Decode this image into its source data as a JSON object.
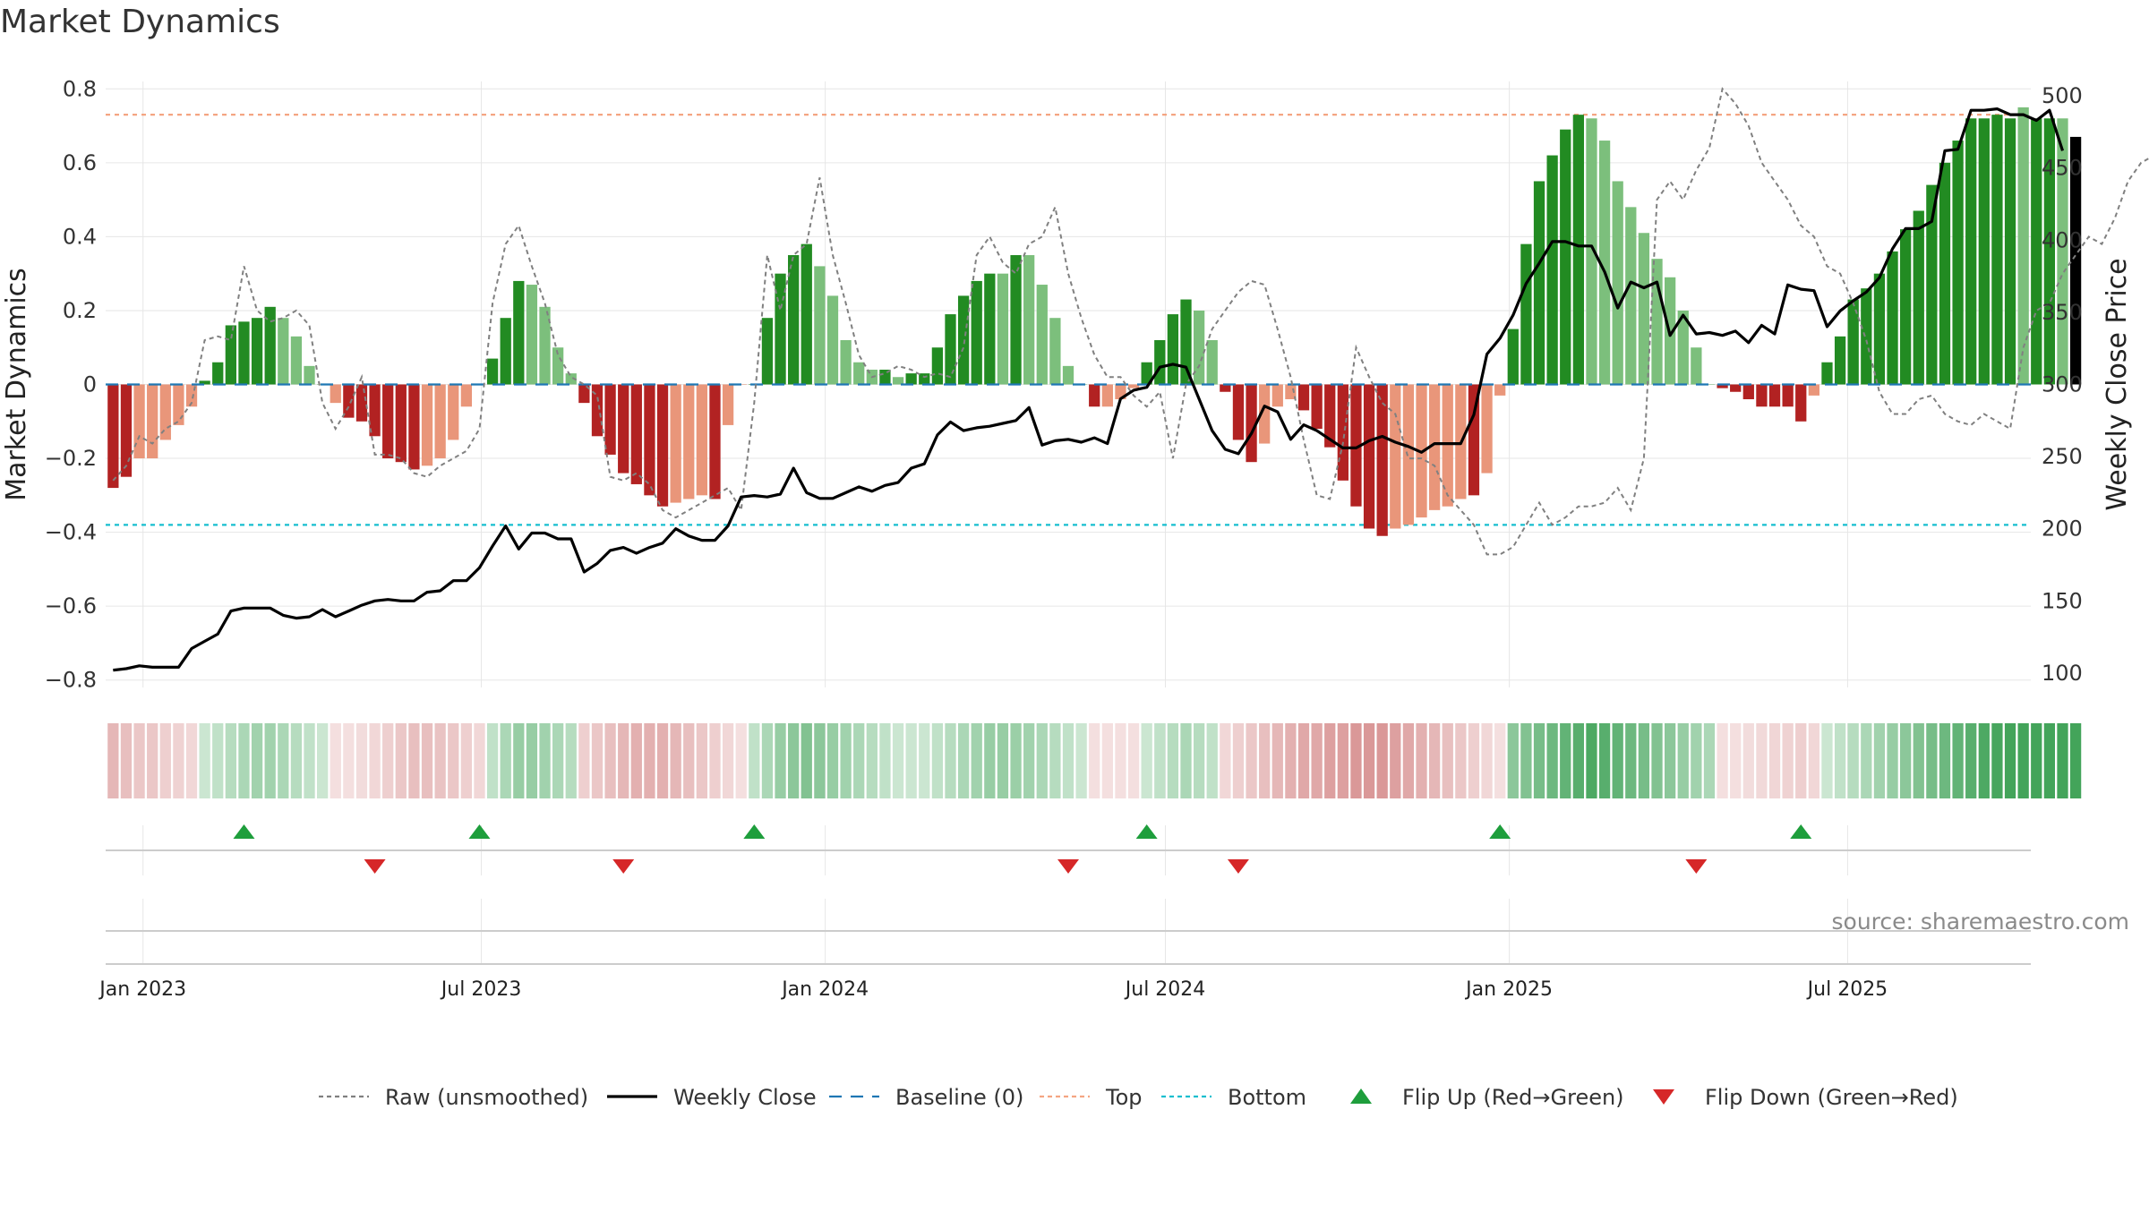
{
  "title": "Market Dynamics",
  "source": "source: sharemaestro.com",
  "colors": {
    "green_strong": "#228B22",
    "green_light": "#7CBF7C",
    "red_strong": "#B22222",
    "red_light": "#E9967A",
    "top_line": "#F4A582",
    "bottom_line": "#17BECF",
    "baseline": "#1F77B4",
    "raw": "#808080",
    "close": "#000000",
    "flip_up": "#1E9E3C",
    "flip_down": "#D62728",
    "grid": "#E6E6E6"
  },
  "legend": [
    {
      "key": "raw",
      "label": "Raw (unsmoothed)",
      "symbol": "dotted-line"
    },
    {
      "key": "close",
      "label": "Weekly Close",
      "symbol": "solid-line"
    },
    {
      "key": "baseline",
      "label": "Baseline (0)",
      "symbol": "dashed-line"
    },
    {
      "key": "top_line",
      "label": "Top",
      "symbol": "dotted-line"
    },
    {
      "key": "bottom_line",
      "label": "Bottom",
      "symbol": "dotted-line"
    },
    {
      "key": "flip_up",
      "label": "Flip Up (Red→Green)",
      "symbol": "triangle-up"
    },
    {
      "key": "flip_down",
      "label": "Flip Down (Green→Red)",
      "symbol": "triangle-down"
    }
  ],
  "chart_data": {
    "type": "bar",
    "ylabel": "Market Dynamics",
    "y2label": "Weekly Close Price",
    "ylim": [
      -0.82,
      0.82
    ],
    "y2lim": [
      90,
      510
    ],
    "yticks": [
      -0.8,
      -0.6,
      -0.4,
      -0.2,
      0,
      0.2,
      0.4,
      0.6,
      0.8
    ],
    "y2ticks": [
      100,
      150,
      200,
      250,
      300,
      350,
      400,
      450,
      500
    ],
    "xlim": [
      "2022-12-12",
      "2025-10-07"
    ],
    "xticks": [
      {
        "date": "2023-01-01",
        "label": "Jan 2023"
      },
      {
        "date": "2023-07-01",
        "label": "Jul 2023"
      },
      {
        "date": "2024-01-01",
        "label": "Jan 2024"
      },
      {
        "date": "2024-07-01",
        "label": "Jul 2024"
      },
      {
        "date": "2025-01-01",
        "label": "Jan 2025"
      },
      {
        "date": "2025-07-01",
        "label": "Jul 2025"
      }
    ],
    "start_date": "2022-12-16",
    "step_days": 7,
    "top": 0.73,
    "bottom": -0.38,
    "baseline": 0,
    "grid": true,
    "legend_position": "bottom",
    "series": [
      {
        "name": "Raw (unsmoothed)",
        "type": "line",
        "values": [
          -0.26,
          -0.22,
          -0.14,
          -0.16,
          -0.12,
          -0.1,
          -0.05,
          0.12,
          0.13,
          0.12,
          0.32,
          0.2,
          0.17,
          0.18,
          0.2,
          0.16,
          -0.05,
          -0.12,
          -0.06,
          0.02,
          -0.19,
          -0.19,
          -0.2,
          -0.24,
          -0.25,
          -0.22,
          -0.2,
          -0.18,
          -0.12,
          0.22,
          0.38,
          0.43,
          0.32,
          0.22,
          0.08,
          0.02,
          0.0,
          -0.03,
          -0.25,
          -0.26,
          -0.24,
          -0.27,
          -0.34,
          -0.36,
          -0.34,
          -0.32,
          -0.3,
          -0.28,
          -0.34,
          -0.05,
          0.35,
          0.2,
          0.35,
          0.38,
          0.56,
          0.35,
          0.22,
          0.08,
          0.02,
          0.03,
          0.05,
          0.04,
          0.02,
          0.03,
          0.02,
          0.1,
          0.35,
          0.4,
          0.33,
          0.3,
          0.38,
          0.4,
          0.48,
          0.3,
          0.18,
          0.08,
          0.02,
          0.02,
          -0.03,
          -0.06,
          -0.02,
          -0.2,
          0.0,
          0.05,
          0.15,
          0.2,
          0.25,
          0.28,
          0.27,
          0.15,
          0.02,
          -0.15,
          -0.3,
          -0.31,
          -0.16,
          0.1,
          0.02,
          -0.05,
          -0.08,
          -0.2,
          -0.2,
          -0.22,
          -0.3,
          -0.34,
          -0.38,
          -0.46,
          -0.46,
          -0.44,
          -0.38,
          -0.32,
          -0.38,
          -0.36,
          -0.33,
          -0.33,
          -0.32,
          -0.28,
          -0.34,
          -0.2,
          0.5,
          0.55,
          0.5,
          0.58,
          0.64,
          0.8,
          0.76,
          0.7,
          0.6,
          0.55,
          0.5,
          0.43,
          0.4,
          0.32,
          0.3,
          0.22,
          0.12,
          -0.02,
          -0.08,
          -0.08,
          -0.04,
          -0.03,
          -0.08,
          -0.1,
          -0.11,
          -0.08,
          -0.1,
          -0.12,
          0.1,
          0.2,
          0.22,
          0.3,
          0.35,
          0.4,
          0.38,
          0.45,
          0.55,
          0.6,
          0.62,
          0.65,
          0.7,
          0.82,
          0.72,
          0.75,
          0.73,
          0.78,
          0.76,
          0.72,
          0.65
        ],
        "color": "#808080"
      },
      {
        "name": "Weekly Close",
        "type": "line",
        "axis": "y2",
        "values": [
          102,
          103,
          105,
          104,
          104,
          104,
          117,
          122,
          127,
          143,
          145,
          145,
          145,
          140,
          138,
          139,
          144,
          139,
          143,
          147,
          150,
          151,
          150,
          150,
          156,
          157,
          164,
          164,
          173,
          188,
          202,
          186,
          197,
          197,
          193,
          193,
          170,
          176,
          185,
          187,
          183,
          187,
          190,
          200,
          195,
          192,
          192,
          202,
          222,
          223,
          222,
          224,
          242,
          225,
          221,
          221,
          225,
          229,
          226,
          230,
          232,
          242,
          245,
          265,
          274,
          268,
          270,
          271,
          273,
          275,
          284,
          258,
          261,
          262,
          260,
          263,
          259,
          290,
          296,
          298,
          312,
          314,
          312,
          290,
          268,
          255,
          252,
          266,
          285,
          281,
          262,
          272,
          268,
          262,
          256,
          256,
          261,
          264,
          260,
          257,
          253,
          259,
          259,
          259,
          279,
          321,
          332,
          348,
          370,
          384,
          399,
          399,
          396,
          396,
          378,
          353,
          371,
          367,
          371,
          334,
          348,
          335,
          336,
          334,
          337,
          329,
          341,
          335,
          369,
          366,
          365,
          340,
          351,
          358,
          364,
          374,
          394,
          408,
          408,
          413,
          462,
          463,
          490,
          490,
          491,
          487,
          487,
          483,
          490,
          462
        ],
        "color": "#000000"
      }
    ],
    "momentum": {
      "name": "Market Dynamics",
      "type": "bar",
      "values": [
        -0.28,
        -0.25,
        -0.2,
        -0.2,
        -0.15,
        -0.11,
        -0.06,
        0.01,
        0.06,
        0.16,
        0.17,
        0.18,
        0.21,
        0.18,
        0.13,
        0.05,
        0.0,
        -0.05,
        -0.09,
        -0.1,
        -0.14,
        -0.2,
        -0.21,
        -0.23,
        -0.22,
        -0.2,
        -0.15,
        -0.06,
        0.0,
        0.07,
        0.18,
        0.28,
        0.27,
        0.21,
        0.1,
        0.03,
        -0.05,
        -0.14,
        -0.19,
        -0.24,
        -0.27,
        -0.3,
        -0.33,
        -0.32,
        -0.31,
        -0.3,
        -0.31,
        -0.11,
        0.0,
        0.0,
        0.18,
        0.3,
        0.35,
        0.38,
        0.32,
        0.24,
        0.12,
        0.06,
        0.04,
        0.04,
        0.02,
        0.03,
        0.03,
        0.1,
        0.19,
        0.24,
        0.28,
        0.3,
        0.3,
        0.35,
        0.35,
        0.27,
        0.18,
        0.05,
        0.0,
        -0.06,
        -0.06,
        -0.04,
        -0.01,
        0.06,
        0.12,
        0.19,
        0.23,
        0.2,
        0.12,
        -0.02,
        -0.15,
        -0.21,
        -0.16,
        -0.06,
        -0.04,
        -0.07,
        -0.12,
        -0.17,
        -0.26,
        -0.33,
        -0.39,
        -0.41,
        -0.39,
        -0.38,
        -0.36,
        -0.34,
        -0.33,
        -0.31,
        -0.3,
        -0.24,
        -0.03,
        0.15,
        0.38,
        0.55,
        0.62,
        0.69,
        0.73,
        0.72,
        0.66,
        0.55,
        0.48,
        0.41,
        0.34,
        0.29,
        0.2,
        0.1,
        0.0,
        -0.01,
        -0.02,
        -0.04,
        -0.06,
        -0.06,
        -0.06,
        -0.1,
        -0.03,
        0.06,
        0.13,
        0.23,
        0.26,
        0.3,
        0.36,
        0.42,
        0.47,
        0.54,
        0.6,
        0.66,
        0.72,
        0.72,
        0.73,
        0.72,
        0.75,
        0.72,
        0.72,
        0.72,
        0.67
      ],
      "states": [
        2,
        2,
        3,
        3,
        3,
        3,
        3,
        0,
        0,
        0,
        0,
        0,
        0,
        1,
        1,
        1,
        1,
        3,
        2,
        2,
        2,
        2,
        2,
        2,
        3,
        3,
        3,
        3,
        3,
        0,
        0,
        0,
        1,
        1,
        1,
        1,
        2,
        2,
        2,
        2,
        2,
        2,
        2,
        3,
        3,
        3,
        2,
        3,
        3,
        0,
        0,
        0,
        0,
        0,
        1,
        1,
        1,
        1,
        1,
        0,
        1,
        0,
        0,
        0,
        0,
        0,
        0,
        0,
        1,
        0,
        1,
        1,
        1,
        1,
        1,
        2,
        3,
        3,
        3,
        0,
        0,
        0,
        0,
        1,
        1,
        2,
        2,
        2,
        3,
        3,
        3,
        2,
        2,
        2,
        2,
        2,
        2,
        2,
        3,
        3,
        3,
        3,
        3,
        3,
        2,
        3,
        3,
        0,
        0,
        0,
        0,
        0,
        0,
        1,
        1,
        1,
        1,
        1,
        1,
        1,
        1,
        1,
        1,
        2,
        2,
        2,
        2,
        2,
        2,
        2,
        3,
        0,
        0,
        0,
        0,
        0,
        0,
        0,
        0,
        0,
        0,
        0,
        0,
        0,
        0,
        0,
        1,
        0,
        0,
        1
      ]
    },
    "strip": {
      "name": "Regime strip",
      "intensity": [
        0.45,
        0.4,
        0.35,
        0.35,
        0.3,
        0.28,
        0.25,
        0.25,
        0.3,
        0.35,
        0.4,
        0.45,
        0.45,
        0.4,
        0.35,
        0.3,
        0.25,
        0.2,
        0.2,
        0.22,
        0.25,
        0.3,
        0.35,
        0.4,
        0.4,
        0.38,
        0.35,
        0.3,
        0.25,
        0.3,
        0.4,
        0.5,
        0.5,
        0.45,
        0.4,
        0.35,
        0.3,
        0.35,
        0.4,
        0.45,
        0.5,
        0.5,
        0.5,
        0.45,
        0.4,
        0.35,
        0.3,
        0.25,
        0.2,
        0.3,
        0.4,
        0.5,
        0.55,
        0.6,
        0.55,
        0.5,
        0.45,
        0.4,
        0.35,
        0.3,
        0.25,
        0.25,
        0.25,
        0.3,
        0.35,
        0.4,
        0.45,
        0.5,
        0.5,
        0.48,
        0.45,
        0.4,
        0.35,
        0.3,
        0.25,
        0.2,
        0.2,
        0.2,
        0.2,
        0.25,
        0.3,
        0.35,
        0.4,
        0.35,
        0.3,
        0.25,
        0.3,
        0.35,
        0.4,
        0.45,
        0.5,
        0.55,
        0.55,
        0.6,
        0.6,
        0.65,
        0.65,
        0.65,
        0.6,
        0.55,
        0.5,
        0.45,
        0.4,
        0.35,
        0.3,
        0.25,
        0.2,
        0.55,
        0.6,
        0.65,
        0.7,
        0.75,
        0.8,
        0.85,
        0.8,
        0.75,
        0.7,
        0.65,
        0.6,
        0.55,
        0.5,
        0.45,
        0.4,
        0.2,
        0.2,
        0.22,
        0.24,
        0.26,
        0.28,
        0.3,
        0.25,
        0.25,
        0.3,
        0.35,
        0.4,
        0.45,
        0.5,
        0.55,
        0.6,
        0.65,
        0.7,
        0.75,
        0.8,
        0.85,
        0.88,
        0.9,
        0.9,
        0.9,
        0.9,
        0.9,
        0.9
      ],
      "sign": [
        -1,
        -1,
        -1,
        -1,
        -1,
        -1,
        -1,
        1,
        1,
        1,
        1,
        1,
        1,
        1,
        1,
        1,
        1,
        -1,
        -1,
        -1,
        -1,
        -1,
        -1,
        -1,
        -1,
        -1,
        -1,
        -1,
        -1,
        1,
        1,
        1,
        1,
        1,
        1,
        1,
        -1,
        -1,
        -1,
        -1,
        -1,
        -1,
        -1,
        -1,
        -1,
        -1,
        -1,
        -1,
        -1,
        1,
        1,
        1,
        1,
        1,
        1,
        1,
        1,
        1,
        1,
        1,
        1,
        1,
        1,
        1,
        1,
        1,
        1,
        1,
        1,
        1,
        1,
        1,
        1,
        1,
        1,
        -1,
        -1,
        -1,
        -1,
        1,
        1,
        1,
        1,
        1,
        1,
        -1,
        -1,
        -1,
        -1,
        -1,
        -1,
        -1,
        -1,
        -1,
        -1,
        -1,
        -1,
        -1,
        -1,
        -1,
        -1,
        -1,
        -1,
        -1,
        -1,
        -1,
        -1,
        1,
        1,
        1,
        1,
        1,
        1,
        1,
        1,
        1,
        1,
        1,
        1,
        1,
        1,
        1,
        1,
        -1,
        -1,
        -1,
        -1,
        -1,
        -1,
        -1,
        -1,
        1,
        1,
        1,
        1,
        1,
        1,
        1,
        1,
        1,
        1,
        1,
        1,
        1,
        1,
        1,
        1,
        1,
        1,
        1,
        1
      ]
    },
    "flip_up_dates": [
      "2023-02-24",
      "2023-06-30",
      "2023-11-24",
      "2024-06-21",
      "2024-12-27",
      "2025-06-06"
    ],
    "flip_down_dates": [
      "2023-05-05",
      "2023-09-15",
      "2024-05-10",
      "2024-08-09",
      "2025-04-11"
    ]
  }
}
